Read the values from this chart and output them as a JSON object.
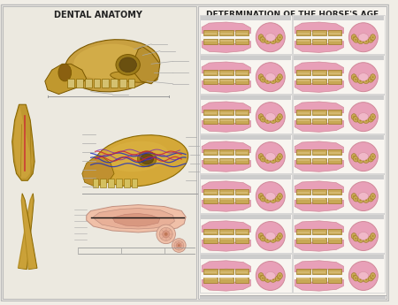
{
  "title_left": "DENTAL ANATOMY",
  "title_right": "DETERMINATION OF THE HORSE'S AGE",
  "bg_color": "#f0ede6",
  "left_bg": "#ece9e0",
  "right_bg": "#f5f2ec",
  "border_color": "#bbbbbb",
  "text_color": "#222222",
  "skull_color": "#c8a855",
  "tooth_yellow": "#c8a855",
  "tooth_yellow2": "#d4b870",
  "gum_pink": "#e8a0b8",
  "gum_pink2": "#f0b8c8",
  "gum_dark": "#d08898",
  "line_color": "#aaaaaa",
  "label_color": "#666666",
  "nerve_blue": "#2233bb",
  "nerve_red": "#cc2233",
  "nerve_purple": "#7722bb",
  "panel_border": "#bbbbbb",
  "cell_border": "#cccccc",
  "grid_rows": 7,
  "grid_cols": 2
}
